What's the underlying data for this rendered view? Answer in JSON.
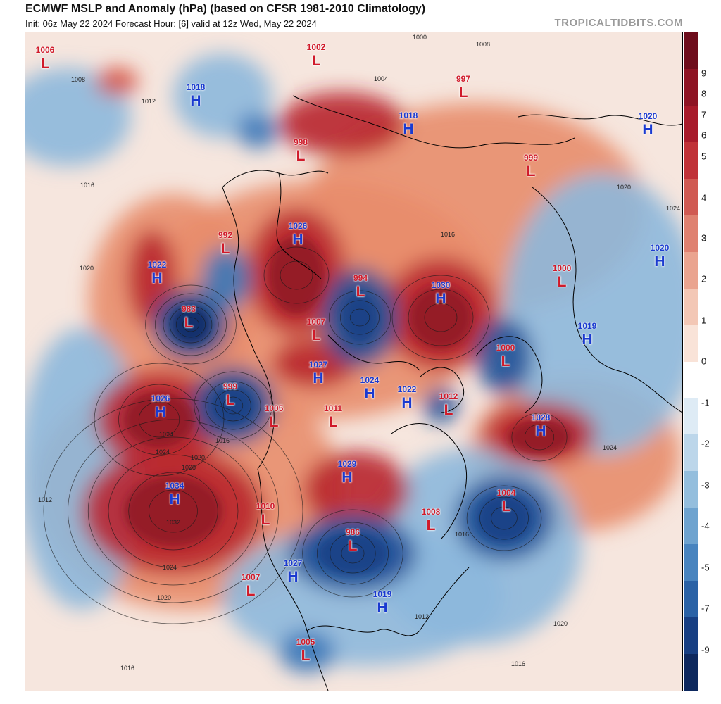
{
  "header": {
    "title": "ECMWF MSLP and Anomaly (hPa) (based on CFSR 1981-2010 Climatology)",
    "subtitle": "Init: 06z May 22 2024   Forecast Hour: [6]   valid at 12z Wed, May 22 2024",
    "brand": "TROPICALTIDBITS.COM"
  },
  "colors": {
    "high": "#1a3ad0",
    "low": "#d01a2a",
    "positive_anomaly": "#b3222f",
    "negative_anomaly": "#1f5fa8",
    "neutral": "#f4f4f4"
  },
  "pressure_centers": [
    {
      "type": "L",
      "value": "1006"
    },
    {
      "type": "H",
      "value": "1018"
    },
    {
      "type": "L",
      "value": "1002"
    },
    {
      "type": "L",
      "value": "997"
    },
    {
      "type": "H",
      "value": "1018"
    },
    {
      "type": "L",
      "value": "998"
    },
    {
      "type": "L",
      "value": "999"
    },
    {
      "type": "H",
      "value": "1020"
    },
    {
      "type": "L",
      "value": "992"
    },
    {
      "type": "H",
      "value": "1026"
    },
    {
      "type": "H",
      "value": "1022"
    },
    {
      "type": "L",
      "value": "994"
    },
    {
      "type": "H",
      "value": "1030"
    },
    {
      "type": "L",
      "value": "1000"
    },
    {
      "type": "H",
      "value": "1020"
    },
    {
      "type": "L",
      "value": "983"
    },
    {
      "type": "L",
      "value": "1007"
    },
    {
      "type": "H",
      "value": "1019"
    },
    {
      "type": "L",
      "value": "1000"
    },
    {
      "type": "H",
      "value": "1027"
    },
    {
      "type": "H",
      "value": "1026"
    },
    {
      "type": "L",
      "value": "999"
    },
    {
      "type": "H",
      "value": "1024"
    },
    {
      "type": "H",
      "value": "1022"
    },
    {
      "type": "L",
      "value": "1012"
    },
    {
      "type": "L",
      "value": "1005"
    },
    {
      "type": "L",
      "value": "1011"
    },
    {
      "type": "H",
      "value": "1028"
    },
    {
      "type": "H",
      "value": "1029"
    },
    {
      "type": "H",
      "value": "1034"
    },
    {
      "type": "L",
      "value": "1004"
    },
    {
      "type": "L",
      "value": "1010"
    },
    {
      "type": "L",
      "value": "1008"
    },
    {
      "type": "L",
      "value": "986"
    },
    {
      "type": "H",
      "value": "1027"
    },
    {
      "type": "L",
      "value": "1007"
    },
    {
      "type": "H",
      "value": "1019"
    },
    {
      "type": "L",
      "value": "1005"
    }
  ],
  "isobar_labels": [
    "1000",
    "1008",
    "1004",
    "1008",
    "1012",
    "1016",
    "1016",
    "1020",
    "1024",
    "1020",
    "1016",
    "1024",
    "1032",
    "1028",
    "1024",
    "1020",
    "1016",
    "1012",
    "1016",
    "1020",
    "1024",
    "1012",
    "1016",
    "1020",
    "1024"
  ],
  "colorbar": {
    "ticks": [
      "9",
      "8",
      "7",
      "6",
      "5",
      "4",
      "3",
      "2",
      "1",
      "0",
      "-1",
      "-2",
      "-3",
      "-4",
      "-5",
      "-7",
      "-9"
    ],
    "colors": [
      "#6e0d1c",
      "#8e1424",
      "#a81b2b",
      "#c03238",
      "#d05a52",
      "#df8170",
      "#eaa48f",
      "#f3c7b5",
      "#f9e3d8",
      "#ffffff",
      "#deebf5",
      "#bcd6ea",
      "#94bedd",
      "#6ea3cf",
      "#4884bf",
      "#2a62a6",
      "#173f83",
      "#0d285e"
    ]
  }
}
